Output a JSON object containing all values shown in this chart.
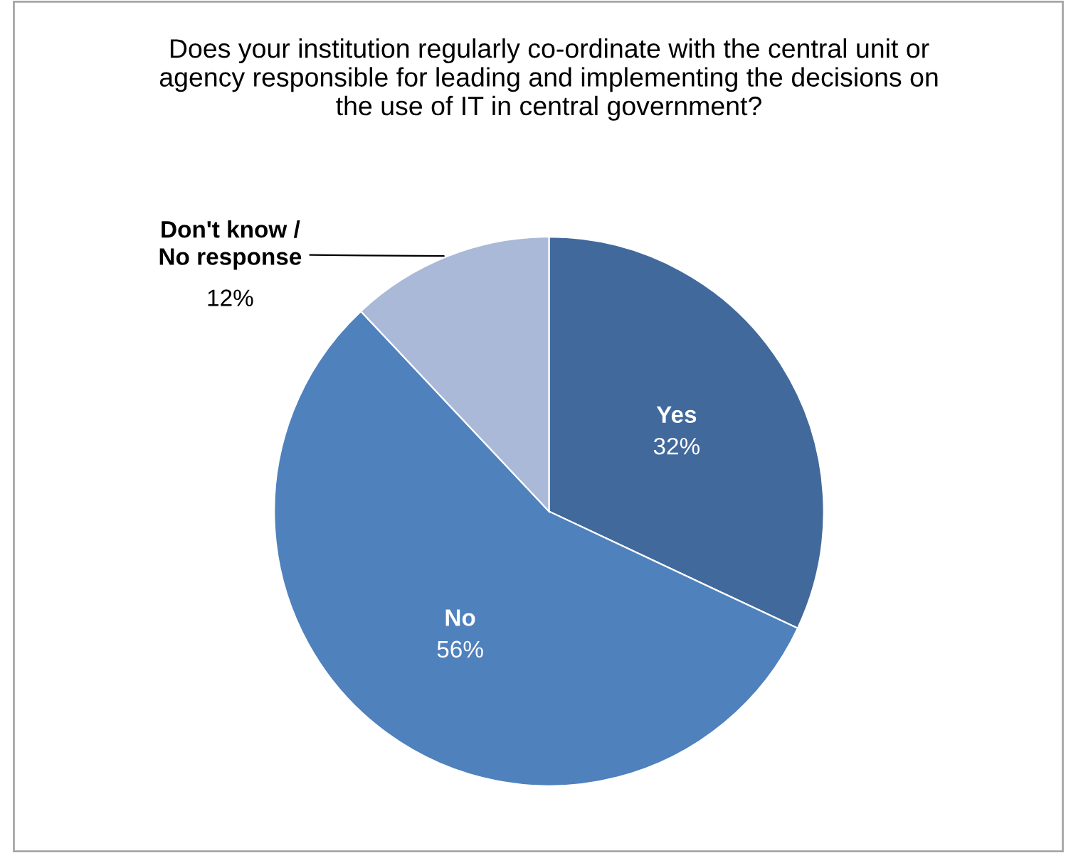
{
  "chart_data": {
    "type": "pie",
    "title": "Does your institution regularly co-ordinate with the central unit or\nagency responsible for leading and implementing the decisions on\nthe use of IT in central government?",
    "categories": [
      "Yes",
      "No",
      "Don't know /\nNo response"
    ],
    "values": [
      32,
      56,
      12
    ],
    "colors": [
      "#41699c",
      "#4f81bd",
      "#aab9d8"
    ],
    "value_labels": [
      "32%",
      "56%",
      "12%"
    ],
    "legend": false
  }
}
